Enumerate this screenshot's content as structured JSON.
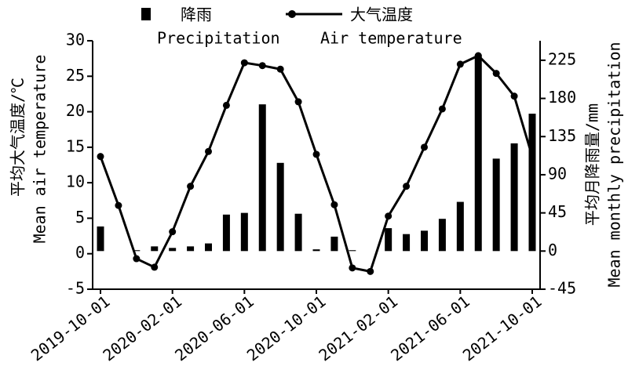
{
  "chart_data": {
    "type": "bar_line",
    "categories": [
      "2019-10-01",
      null,
      null,
      null,
      "2020-02-01",
      null,
      null,
      null,
      "2020-06-01",
      null,
      null,
      null,
      "2020-10-01",
      null,
      null,
      null,
      "2021-02-01",
      null,
      null,
      null,
      "2021-06-01",
      null,
      null,
      null,
      "2021-10-01"
    ],
    "series": [
      {
        "name": "降雨",
        "name_en": "Precipitation",
        "type": "bar",
        "axis": "y2",
        "color": "#000000",
        "values": [
          29,
          0,
          1,
          5.5,
          3.7,
          5.5,
          9,
          43,
          45,
          173,
          104,
          44,
          2,
          17,
          1,
          0,
          27,
          20,
          24,
          38,
          58,
          231,
          109,
          127,
          162
        ]
      },
      {
        "name": "大气温度",
        "name_en": "Air temperature",
        "type": "line",
        "axis": "y",
        "color": "#000000",
        "values": [
          13.7,
          6.8,
          -0.7,
          -1.9,
          3.1,
          9.5,
          14.4,
          20.9,
          26.9,
          26.5,
          26.0,
          21.4,
          14.0,
          6.9,
          -2.0,
          -2.5,
          5.3,
          9.5,
          15.0,
          20.4,
          26.7,
          27.9,
          25.4,
          22.2,
          13.7
        ]
      }
    ],
    "ylabel": "平均大气温度/℃",
    "ylabel_en": "Mean air temperature",
    "y2label": "平均月降雨量/mm",
    "y2label_en": "Mean monthly precipitation",
    "ylim": [
      -5,
      30
    ],
    "yticks": [
      -5,
      0,
      5,
      10,
      15,
      20,
      25,
      30
    ],
    "y2lim": [
      -45,
      248
    ],
    "y2ticks": [
      -45,
      0,
      45,
      90,
      135,
      180,
      225
    ],
    "grid": false
  }
}
